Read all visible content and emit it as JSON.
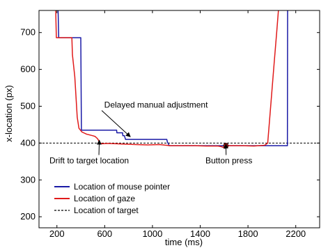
{
  "chart_data": {
    "type": "line",
    "title": "",
    "xlabel": "time (ms)",
    "ylabel": "x-location (px)",
    "xlim": [
      50,
      2400
    ],
    "ylim": [
      170,
      760
    ],
    "xticks": [
      200,
      600,
      1000,
      1400,
      1800,
      2200
    ],
    "yticks": [
      200,
      300,
      400,
      500,
      600,
      700
    ],
    "grid": false,
    "legend_position": "bottom-left",
    "series": [
      {
        "name": "Location of mouse pointer",
        "color": "#1a1aa6",
        "style": "solid",
        "points": [
          [
            210,
            760
          ],
          [
            215,
            686
          ],
          [
            395,
            686
          ],
          [
            400,
            686
          ],
          [
            405,
            435
          ],
          [
            700,
            435
          ],
          [
            702,
            428
          ],
          [
            750,
            428
          ],
          [
            752,
            420
          ],
          [
            765,
            420
          ],
          [
            775,
            410
          ],
          [
            1120,
            410
          ],
          [
            1125,
            403
          ],
          [
            1135,
            397
          ],
          [
            1140,
            393
          ],
          [
            2130,
            393
          ],
          [
            2132,
            760
          ]
        ]
      },
      {
        "name": "Location of gaze",
        "color": "#e01a1a",
        "style": "solid",
        "points": [
          [
            190,
            760
          ],
          [
            195,
            686
          ],
          [
            325,
            686
          ],
          [
            330,
            640
          ],
          [
            350,
            580
          ],
          [
            370,
            470
          ],
          [
            385,
            440
          ],
          [
            410,
            430
          ],
          [
            450,
            424
          ],
          [
            500,
            420
          ],
          [
            520,
            418
          ],
          [
            540,
            412
          ],
          [
            555,
            404
          ],
          [
            560,
            400
          ],
          [
            580,
            398
          ],
          [
            620,
            399
          ],
          [
            700,
            398
          ],
          [
            780,
            397
          ],
          [
            860,
            396
          ],
          [
            960,
            395
          ],
          [
            1060,
            396
          ],
          [
            1150,
            393
          ],
          [
            1250,
            393
          ],
          [
            1350,
            393
          ],
          [
            1450,
            392
          ],
          [
            1550,
            392
          ],
          [
            1580,
            390
          ],
          [
            1600,
            387
          ],
          [
            1610,
            393
          ],
          [
            1650,
            393
          ],
          [
            1750,
            393
          ],
          [
            1850,
            392
          ],
          [
            1940,
            394
          ],
          [
            1965,
            400
          ],
          [
            1980,
            460
          ],
          [
            2000,
            540
          ],
          [
            2020,
            620
          ],
          [
            2040,
            700
          ],
          [
            2055,
            760
          ]
        ]
      },
      {
        "name": "Location of target",
        "color": "#000000",
        "style": "dashed",
        "points": [
          [
            50,
            400
          ],
          [
            2400,
            400
          ]
        ]
      }
    ],
    "annotations": [
      {
        "text": "Delayed manual adjustment",
        "target": [
          815,
          417
        ],
        "label_pos": [
          1030,
          496
        ]
      },
      {
        "text": "Drift to target location",
        "target": [
          555,
          408
        ],
        "label_pos": [
          470,
          345
        ]
      },
      {
        "text": "Button press",
        "target": [
          1615,
          397
        ],
        "label_pos": [
          1640,
          345
        ]
      }
    ],
    "markers": [
      {
        "label": "button-press",
        "x": 1615,
        "y": 393,
        "color": "#8b1a1a"
      }
    ]
  }
}
